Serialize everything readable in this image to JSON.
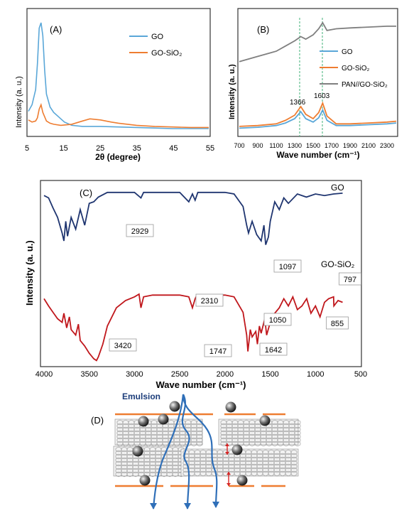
{
  "panel_a": {
    "label": "(A)",
    "ylabel": "Intensity (a. u.)",
    "xlabel": "2θ (degree)",
    "legend": [
      "GO",
      "GO-SiO₂"
    ],
    "colors": [
      "#5aa7d8",
      "#ee7d31"
    ],
    "xticks": [
      "5",
      "15",
      "25",
      "35",
      "45",
      "55"
    ]
  },
  "panel_b": {
    "label": "(B)",
    "ylabel": "Intensity (a. u.)",
    "xlabel": "Wave number (cm⁻¹)",
    "legend": [
      "GO",
      "GO-SiO₂",
      "PAN//GO-SiO₂"
    ],
    "colors": [
      "#5aa7d8",
      "#ee7d31",
      "#7f7f7f"
    ],
    "peak_labels": [
      "1366",
      "1603"
    ],
    "xticks": [
      "700",
      "900",
      "1100",
      "1300",
      "1500",
      "1700",
      "1900",
      "2100",
      "2300"
    ]
  },
  "panel_c": {
    "label": "(C)",
    "ylabel": "Intensity (a. u.)",
    "xlabel": "Wave  number (cm⁻¹)",
    "series_labels": [
      "GO",
      "GO-SiO₂"
    ],
    "colors": [
      "#1f3570",
      "#c0171c"
    ],
    "annotations": [
      "2929",
      "1097",
      "797",
      "2310",
      "1050",
      "855",
      "3420",
      "1747",
      "1642"
    ],
    "xticks": [
      "4000",
      "3500",
      "3000",
      "2500",
      "2000",
      "1500",
      "1000",
      "500"
    ]
  },
  "panel_d": {
    "label": "(D)",
    "emulsion_label": "Emulsion"
  },
  "chart_data": [
    {
      "type": "line",
      "panel": "A",
      "xlabel": "2θ (degree)",
      "ylabel": "Intensity (a. u.)",
      "xlim": [
        5,
        55
      ],
      "series": [
        {
          "name": "GO",
          "x": [
            5,
            6,
            7,
            7.5,
            8,
            8.5,
            9,
            9.5,
            10,
            11,
            12,
            13,
            14,
            15,
            17,
            20,
            25,
            30,
            35,
            40,
            45,
            50,
            55
          ],
          "y": [
            18,
            24,
            38,
            62,
            95,
            100,
            88,
            56,
            34,
            22,
            17,
            14,
            11,
            8,
            5,
            4,
            4,
            3.5,
            3,
            2.5,
            2,
            2,
            2
          ]
        },
        {
          "name": "GO-SiO₂",
          "x": [
            5,
            6,
            7,
            7.5,
            8,
            8.5,
            9,
            10,
            11,
            12,
            14,
            17,
            20,
            22,
            25,
            28,
            30,
            35,
            40,
            45,
            50,
            55
          ],
          "y": [
            10,
            8,
            9,
            12,
            20,
            24,
            17,
            9,
            7,
            6,
            5,
            6,
            9,
            11,
            10,
            8,
            7,
            5,
            4,
            3.5,
            3,
            3
          ]
        }
      ]
    },
    {
      "type": "line",
      "panel": "B",
      "xlabel": "Wave number (cm⁻¹)",
      "ylabel": "Intensity (a. u.)",
      "xlim": [
        700,
        2400
      ],
      "series": [
        {
          "name": "GO",
          "x": [
            700,
            900,
            1100,
            1200,
            1300,
            1366,
            1420,
            1500,
            1560,
            1603,
            1650,
            1750,
            1900,
            2100,
            2300,
            2400
          ],
          "y": [
            3,
            4,
            6,
            9,
            14,
            22,
            14,
            10,
            15,
            24,
            12,
            6,
            6,
            7,
            8,
            9
          ]
        },
        {
          "name": "GO-SiO₂",
          "x": [
            700,
            900,
            1100,
            1200,
            1300,
            1366,
            1420,
            1500,
            1560,
            1603,
            1650,
            1750,
            1900,
            2100,
            2300,
            2400
          ],
          "y": [
            5,
            6,
            8,
            12,
            18,
            28,
            19,
            14,
            21,
            32,
            17,
            8,
            8,
            9,
            10,
            11
          ]
        },
        {
          "name": "PAN//GO-SiO₂",
          "x": [
            700,
            900,
            1100,
            1200,
            1300,
            1366,
            1420,
            1500,
            1560,
            1603,
            1650,
            1750,
            1900,
            2100,
            2300,
            2400
          ],
          "y": [
            80,
            86,
            92,
            98,
            104,
            109,
            106,
            111,
            118,
            125,
            116,
            118,
            119,
            120,
            121,
            121
          ]
        }
      ]
    },
    {
      "type": "line",
      "panel": "C",
      "xlabel": "Wave  number (cm⁻¹)",
      "ylabel": "Intensity (a. u.)",
      "xlim": [
        4000,
        500
      ],
      "series": [
        {
          "name": "GO",
          "x": [
            4000,
            3950,
            3900,
            3850,
            3800,
            3780,
            3760,
            3740,
            3700,
            3650,
            3600,
            3550,
            3500,
            3450,
            3400,
            3300,
            3000,
            2929,
            2900,
            2500,
            2400,
            2360,
            2330,
            2300,
            2000,
            1900,
            1800,
            1760,
            1740,
            1700,
            1650,
            1600,
            1570,
            1550,
            1520,
            1500,
            1450,
            1400,
            1350,
            1300,
            1200,
            1100,
            1000,
            900,
            800,
            700
          ],
          "y": [
            88,
            85,
            72,
            60,
            40,
            30,
            55,
            36,
            60,
            45,
            70,
            50,
            78,
            80,
            86,
            92,
            92,
            85,
            92,
            92,
            80,
            90,
            82,
            92,
            92,
            90,
            74,
            50,
            40,
            55,
            38,
            30,
            50,
            25,
            35,
            55,
            80,
            70,
            85,
            78,
            90,
            86,
            90,
            88,
            90,
            91
          ]
        },
        {
          "name": "GO-SiO₂",
          "x": [
            4000,
            3950,
            3900,
            3850,
            3800,
            3780,
            3750,
            3720,
            3700,
            3650,
            3620,
            3600,
            3550,
            3500,
            3450,
            3420,
            3400,
            3350,
            3300,
            3200,
            3100,
            3000,
            2950,
            2929,
            2900,
            2800,
            2500,
            2400,
            2360,
            2330,
            2310,
            2280,
            2000,
            1900,
            1800,
            1760,
            1747,
            1720,
            1700,
            1660,
            1642,
            1620,
            1600,
            1560,
            1540,
            1500,
            1450,
            1400,
            1350,
            1300,
            1250,
            1200,
            1150,
            1097,
            1050,
            1000,
            950,
            900,
            855,
            800,
            797,
            750,
            700
          ],
          "y": [
            70,
            62,
            55,
            48,
            44,
            54,
            38,
            50,
            36,
            30,
            42,
            24,
            18,
            10,
            4,
            2,
            6,
            20,
            40,
            60,
            68,
            72,
            75,
            60,
            72,
            74,
            74,
            72,
            60,
            70,
            74,
            74,
            74,
            72,
            55,
            30,
            12,
            36,
            28,
            34,
            20,
            40,
            32,
            48,
            30,
            44,
            54,
            60,
            70,
            62,
            72,
            58,
            62,
            70,
            54,
            62,
            50,
            66,
            70,
            72,
            62,
            68,
            66
          ]
        }
      ]
    }
  ]
}
